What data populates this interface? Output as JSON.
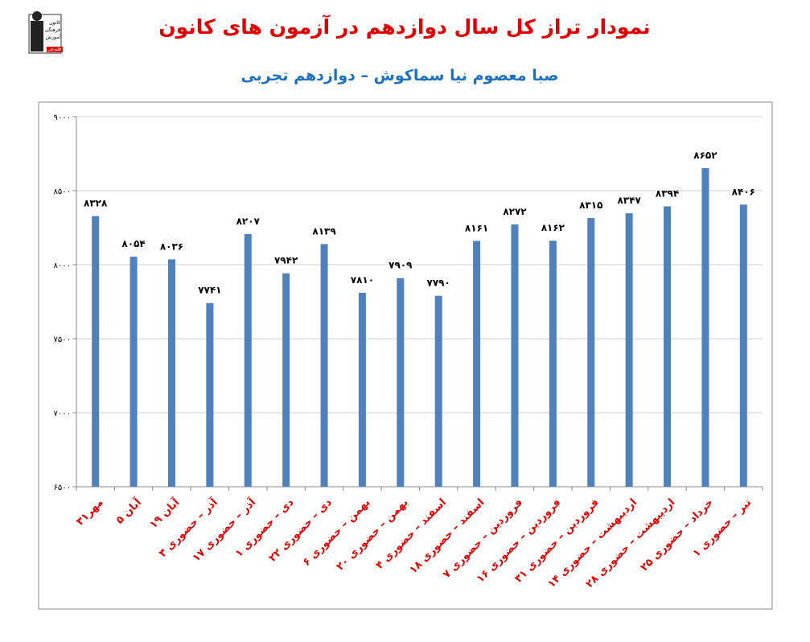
{
  "logo": {
    "lines": [
      "کانون",
      "فرهنگی",
      "آموزش",
      "قلم‌چی"
    ]
  },
  "chart_data": {
    "type": "bar",
    "title": "نمودار تراز کل سال دوازدهم در آزمون های کانون",
    "subtitle": "صبا معصوم نیا سماکوش – دوازدهم تجربی",
    "categories": [
      "۳۱مهر",
      "۵ آبان",
      "۱۹ آبان",
      "۳ آذر – حضوری",
      "۱۷ آذر – حضوری",
      "۱ دی – حضوری",
      "۲۲ دی – حضوری",
      "۶ بهمن – حضوری",
      "۲۰ بهمن – حضوری",
      "۴ اسفند – حضوری",
      "۱۸ اسفند – حضوری",
      "۷ فروردین – حضوری",
      "۱۶ فروردین – حضوری",
      "۳۱ فروردین – حضوری",
      "۱۴ اردیبهشت – حضوری",
      "۲۸ اردیبهشت – حضوری",
      "۲۵ خرداد – حضوری",
      "۱ تیر – حضوری"
    ],
    "values": [
      8328,
      8054,
      8036,
      7741,
      8207,
      7942,
      8139,
      7810,
      7909,
      7790,
      8161,
      8272,
      8162,
      8315,
      8347,
      8394,
      8652,
      8406
    ],
    "value_labels": [
      "۸۳۲۸",
      "۸۰۵۴",
      "۸۰۳۶",
      "۷۷۴۱",
      "۸۲۰۷",
      "۷۹۴۲",
      "۸۱۳۹",
      "۷۸۱۰",
      "۷۹۰۹",
      "۷۷۹۰",
      "۸۱۶۱",
      "۸۲۷۲",
      "۸۱۶۲",
      "۸۳۱۵",
      "۸۳۴۷",
      "۸۳۹۴",
      "۸۶۵۲",
      "۸۴۰۶"
    ],
    "color": "#4f81bd",
    "ylim": [
      6500,
      9000
    ],
    "yticks": [
      {
        "value": 6500,
        "label": "۶۵۰۰"
      },
      {
        "value": 7000,
        "label": "۷۰۰۰"
      },
      {
        "value": 7500,
        "label": "۷۵۰۰"
      },
      {
        "value": 8000,
        "label": "۸۰۰۰"
      },
      {
        "value": 8500,
        "label": "۸۵۰۰"
      },
      {
        "value": 9000,
        "label": "۹۰۰۰"
      }
    ],
    "grid": true
  }
}
